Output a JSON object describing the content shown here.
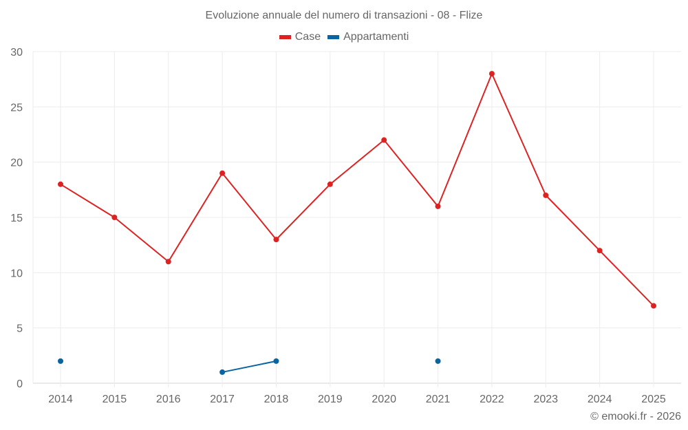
{
  "title": "Evoluzione annuale del numero di transazioni - 08 - Flize",
  "legend": [
    {
      "label": "Case",
      "color": "#dd2222"
    },
    {
      "label": "Appartamenti",
      "color": "#0a64a0"
    }
  ],
  "credit": "© emooki.fr - 2026",
  "chart_data": {
    "type": "line",
    "title": "Evoluzione annuale del numero di transazioni - 08 - Flize",
    "xlabel": "",
    "ylabel": "",
    "ylim": [
      0,
      30
    ],
    "yticks": [
      0,
      5,
      10,
      15,
      20,
      25,
      30
    ],
    "grid": true,
    "legend_position": "top",
    "categories": [
      "2014",
      "2015",
      "2016",
      "2017",
      "2018",
      "2019",
      "2020",
      "2021",
      "2022",
      "2023",
      "2024",
      "2025"
    ],
    "series": [
      {
        "name": "Case",
        "color": "#dd2222",
        "values": [
          18,
          15,
          11,
          19,
          13,
          18,
          22,
          16,
          28,
          17,
          12,
          7
        ]
      },
      {
        "name": "Appartamenti",
        "color": "#0a64a0",
        "values": [
          2,
          null,
          null,
          1,
          2,
          null,
          null,
          2,
          null,
          null,
          null,
          null
        ]
      }
    ]
  }
}
